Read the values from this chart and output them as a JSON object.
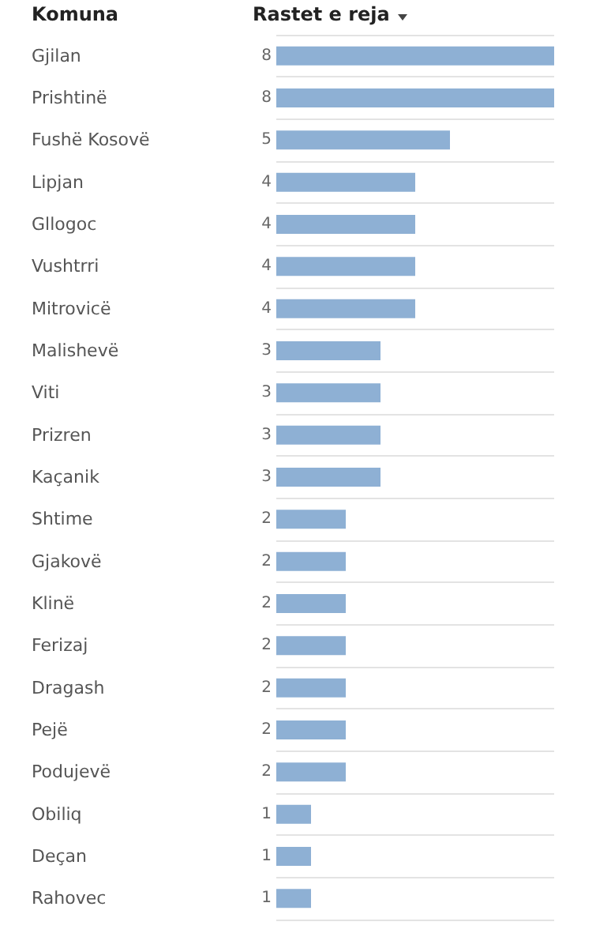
{
  "chart_data": {
    "type": "bar",
    "orientation": "horizontal",
    "ylabel": "Komuna",
    "xlabel": "Rastet e reja",
    "categories": [
      "Gjilan",
      "Prishtinë",
      "Fushë Kosovë",
      "Lipjan",
      "Gllogoc",
      "Vushtrri",
      "Mitrovicë",
      "Malishevë",
      "Viti",
      "Prizren",
      "Kaçanik",
      "Shtime",
      "Gjakovë",
      "Klinë",
      "Ferizaj",
      "Dragash",
      "Pejë",
      "Podujevë",
      "Obiliq",
      "Deçan",
      "Rahovec"
    ],
    "values": [
      8,
      8,
      5,
      4,
      4,
      4,
      4,
      3,
      3,
      3,
      3,
      2,
      2,
      2,
      2,
      2,
      2,
      2,
      1,
      1,
      1
    ],
    "color": "#8eb0d4",
    "data_labels": true,
    "grid": "y"
  }
}
